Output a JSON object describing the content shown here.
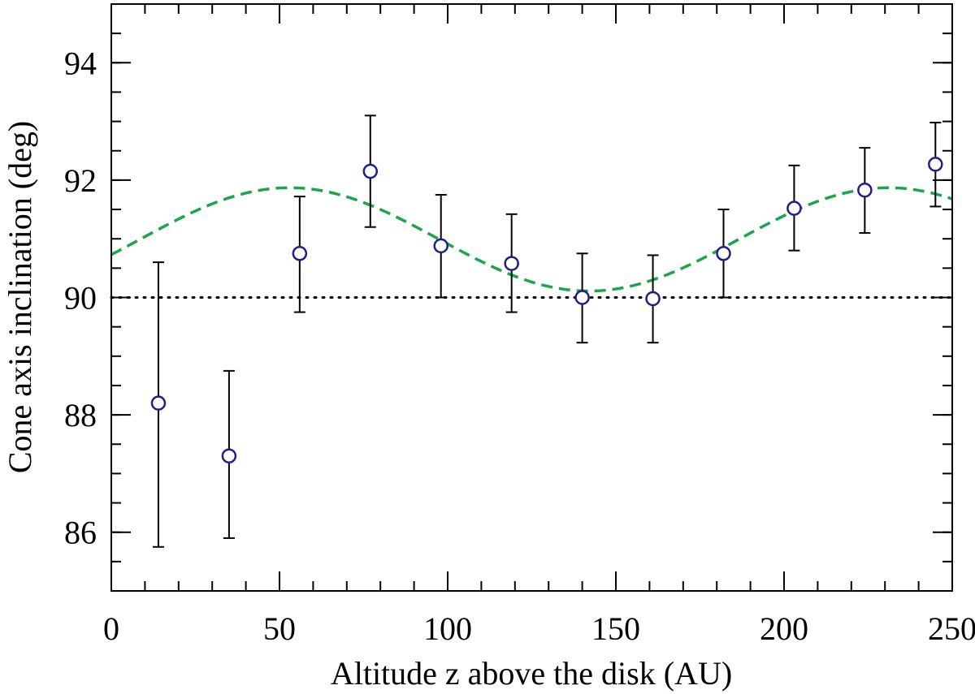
{
  "chart_data": {
    "type": "scatter",
    "xlabel": "Altitude z above the disk (AU)",
    "ylabel": "Cone axis inclination (deg)",
    "xlim": [
      0,
      250
    ],
    "ylim": [
      85,
      95
    ],
    "x_major_ticks": [
      0,
      50,
      100,
      150,
      200,
      250
    ],
    "x_minor_step": 10,
    "y_major_ticks": [
      86,
      88,
      90,
      92,
      94
    ],
    "y_minor_step": 0.5,
    "grid": false,
    "series": [
      {
        "kind": "points_with_error_bars",
        "marker": "open-circle",
        "color": "#1e1e8c",
        "errorbar_color": "#000000",
        "points": [
          {
            "x": 14,
            "y": 88.2,
            "ylo": 85.75,
            "yhi": 90.6
          },
          {
            "x": 35,
            "y": 87.3,
            "ylo": 85.9,
            "yhi": 88.75
          },
          {
            "x": 56,
            "y": 90.75,
            "ylo": 89.75,
            "yhi": 91.72
          },
          {
            "x": 77,
            "y": 92.15,
            "ylo": 91.2,
            "yhi": 93.1
          },
          {
            "x": 98,
            "y": 90.88,
            "ylo": 90.0,
            "yhi": 91.75
          },
          {
            "x": 119,
            "y": 90.58,
            "ylo": 89.75,
            "yhi": 91.42
          },
          {
            "x": 140,
            "y": 90.0,
            "ylo": 89.23,
            "yhi": 90.75
          },
          {
            "x": 161,
            "y": 89.98,
            "ylo": 89.23,
            "yhi": 90.72
          },
          {
            "x": 182,
            "y": 90.75,
            "ylo": 90.0,
            "yhi": 91.5
          },
          {
            "x": 203,
            "y": 91.52,
            "ylo": 90.8,
            "yhi": 92.25
          },
          {
            "x": 224,
            "y": 91.83,
            "ylo": 91.1,
            "yhi": 92.55
          },
          {
            "x": 245,
            "y": 92.27,
            "ylo": 91.55,
            "yhi": 92.98
          }
        ]
      },
      {
        "kind": "sinusoid_fit",
        "style": "dashed",
        "color": "#1aa64a",
        "mean": 90.99,
        "amplitude": 0.88,
        "period": 178,
        "phase_x": 8.5
      },
      {
        "kind": "reference_line",
        "style": "dotted",
        "color": "#000000",
        "y": 90
      }
    ]
  }
}
